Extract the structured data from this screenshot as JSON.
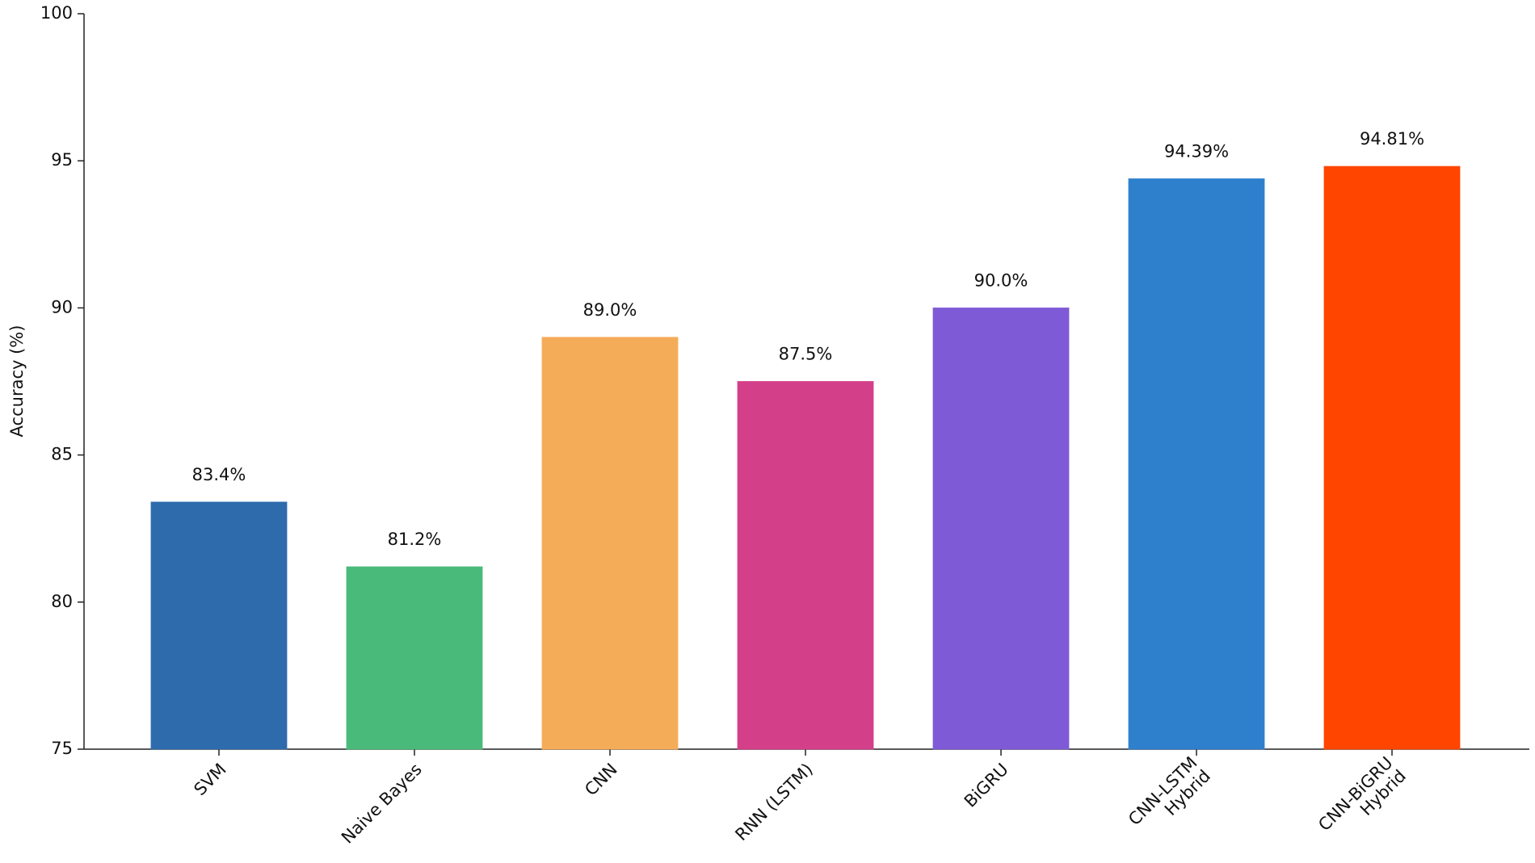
{
  "chart_data": {
    "type": "bar",
    "ylabel": "Accuracy (%)",
    "categories": [
      "SVM",
      "Naive Bayes",
      "CNN",
      "RNN (LSTM)",
      "BiGRU",
      "CNN-LSTM\nHybrid",
      "CNN-BiGRU\nHybrid"
    ],
    "values": [
      83.4,
      81.2,
      89.0,
      87.5,
      90.0,
      94.39,
      94.81
    ],
    "value_labels": [
      "83.4%",
      "81.2%",
      "89.0%",
      "87.5%",
      "90.0%",
      "94.39%",
      "94.81%"
    ],
    "colors": [
      "#2e6bad",
      "#4aba7a",
      "#f5ac58",
      "#d43f8a",
      "#7f5ad6",
      "#2f80cc",
      "#ff4500"
    ],
    "ylim": [
      75,
      100
    ],
    "yticks": [
      75,
      80,
      85,
      90,
      95,
      100
    ],
    "grid": false
  }
}
